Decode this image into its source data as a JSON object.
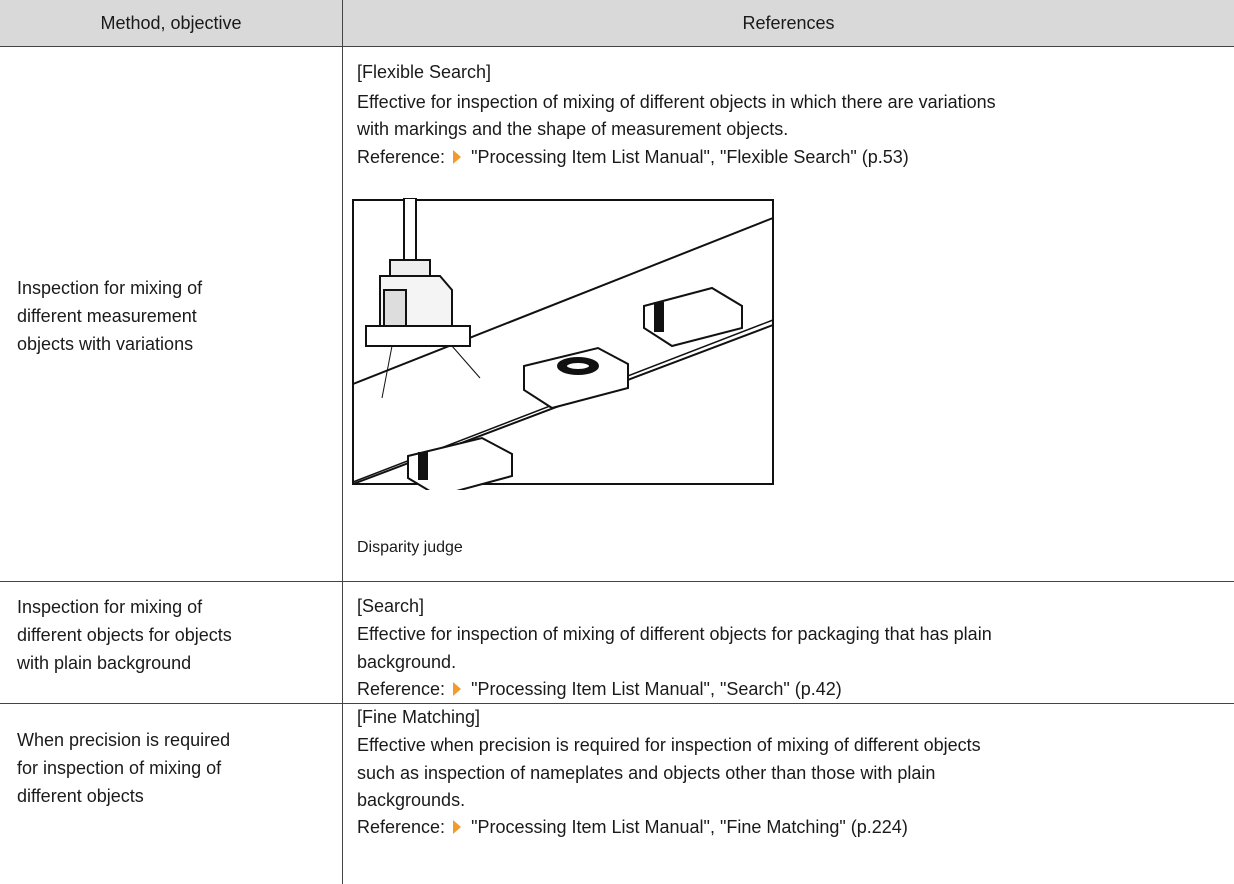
{
  "table": {
    "header": [
      "Method, objective",
      "References"
    ],
    "rows": [
      {
        "method": [
          "Inspection for mixing of",
          "different measurement",
          "objects with variations"
        ],
        "title": "[Flexible Search]",
        "description": [
          "Effective for inspection of mixing of different objects in which there are variations",
          "with markings and the shape of measurement objects."
        ],
        "reference_label": "Reference:",
        "reference": "\"Processing Item List Manual\", \"Flexible Search\" (p.53)",
        "figure_caption": "Disparity judge"
      },
      {
        "method": [
          "Inspection for mixing of",
          "different objects for objects",
          "with plain background"
        ],
        "title": "[Search]",
        "description": [
          "Effective for inspection of mixing of different objects for packaging that has plain",
          "background."
        ],
        "reference_label": "Reference:",
        "reference": "\"Processing Item List Manual\", \"Search\" (p.42)"
      },
      {
        "method": [
          "When precision is required",
          "for inspection of mixing of",
          "different objects"
        ],
        "title": "[Fine Matching]",
        "description": [
          "Effective when precision is required for inspection of mixing of different objects",
          "such as inspection of nameplates and objects other than those with plain",
          "backgrounds."
        ],
        "reference_label": "Reference:",
        "reference": "\"Processing Item List Manual\", \"Fine Matching\" (p.224)"
      }
    ]
  }
}
